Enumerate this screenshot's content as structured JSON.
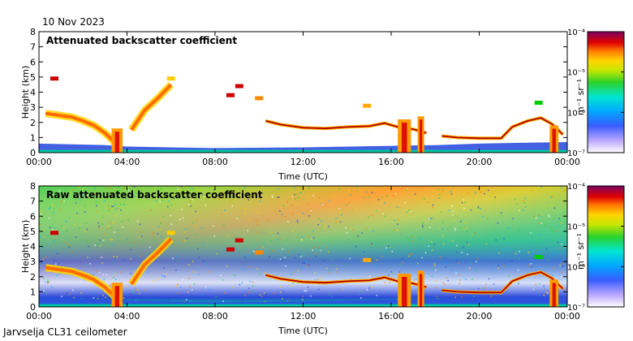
{
  "header": {
    "date": "10 Nov 2023"
  },
  "footer": {
    "station": "Jarvselja CL31 ceilometer"
  },
  "chart_data": [
    {
      "type": "heatmap",
      "title": "Attenuated backscatter coefficient",
      "xlabel": "Time (UTC)",
      "ylabel": "Height (km)",
      "x_ticks": [
        "00:00",
        "04:00",
        "08:00",
        "12:00",
        "16:00",
        "20:00",
        "00:00"
      ],
      "y_ticks": [
        "0",
        "1",
        "2",
        "3",
        "4",
        "5",
        "6",
        "7",
        "8"
      ],
      "xlim_hours": [
        0,
        24
      ],
      "ylim": [
        0,
        8
      ],
      "colorbar": {
        "unit": "m⁻¹ sr⁻¹",
        "tick_labels": [
          "10⁻⁷",
          "10⁻⁶",
          "10⁻⁵",
          "10⁻⁴"
        ]
      }
    },
    {
      "type": "heatmap",
      "title": "Raw attenuated backscatter coefficient",
      "xlabel": "Time (UTC)",
      "ylabel": "Height (km)",
      "x_ticks": [
        "00:00",
        "04:00",
        "08:00",
        "12:00",
        "16:00",
        "20:00",
        "00:00"
      ],
      "y_ticks": [
        "0",
        "1",
        "2",
        "3",
        "4",
        "5",
        "6",
        "7",
        "8"
      ],
      "xlim_hours": [
        0,
        24
      ],
      "ylim": [
        0,
        8
      ],
      "colorbar": {
        "unit": "m⁻¹ sr⁻¹",
        "tick_labels": [
          "10⁻⁷",
          "10⁻⁶",
          "10⁻⁵",
          "10⁻⁴"
        ]
      }
    }
  ],
  "features": {
    "cloud_layer": [
      [
        0.3,
        2.6
      ],
      [
        1,
        2.45
      ],
      [
        1.5,
        2.35
      ],
      [
        2,
        2.1
      ],
      [
        2.5,
        1.8
      ],
      [
        3,
        1.3
      ],
      [
        3.5,
        0.6
      ],
      [
        4.2,
        1.5
      ],
      [
        4.8,
        2.8
      ],
      [
        5.4,
        3.6
      ],
      [
        6,
        4.5
      ],
      [
        10.3,
        2.1
      ],
      [
        11,
        1.85
      ],
      [
        12,
        1.65
      ],
      [
        13,
        1.6
      ],
      [
        14,
        1.7
      ],
      [
        15,
        1.75
      ],
      [
        15.7,
        1.95
      ],
      [
        16.3,
        1.7
      ],
      [
        17,
        1.55
      ],
      [
        17.6,
        1.3
      ],
      [
        18.3,
        1.1
      ],
      [
        19,
        1.0
      ],
      [
        20,
        0.95
      ],
      [
        21,
        0.95
      ],
      [
        21.5,
        1.7
      ],
      [
        22.2,
        2.1
      ],
      [
        22.8,
        2.3
      ],
      [
        23.3,
        1.9
      ],
      [
        23.8,
        1.2
      ]
    ],
    "boundary_layer": [
      [
        0,
        0.6
      ],
      [
        3,
        0.5
      ],
      [
        4,
        0.4
      ],
      [
        6,
        0.35
      ],
      [
        8,
        0.3
      ],
      [
        12,
        0.35
      ],
      [
        16,
        0.45
      ],
      [
        18,
        0.5
      ],
      [
        20,
        0.6
      ],
      [
        24,
        0.7
      ]
    ],
    "precip_columns": [
      [
        3.3,
        3.8,
        1.6
      ],
      [
        16.3,
        16.9,
        2.2
      ],
      [
        17.2,
        17.5,
        2.4
      ],
      [
        23.2,
        23.6,
        1.8
      ]
    ],
    "blobs": [
      [
        0.7,
        4.9,
        "#cc0000"
      ],
      [
        8.7,
        3.8,
        "#cc0000"
      ],
      [
        9.1,
        4.4,
        "#cc0000"
      ],
      [
        10,
        3.6,
        "#ff8800"
      ],
      [
        14.9,
        3.1,
        "#ffaa00"
      ],
      [
        6,
        4.9,
        "#ffcc00"
      ],
      [
        22.7,
        3.3,
        "#00cc00"
      ]
    ]
  }
}
